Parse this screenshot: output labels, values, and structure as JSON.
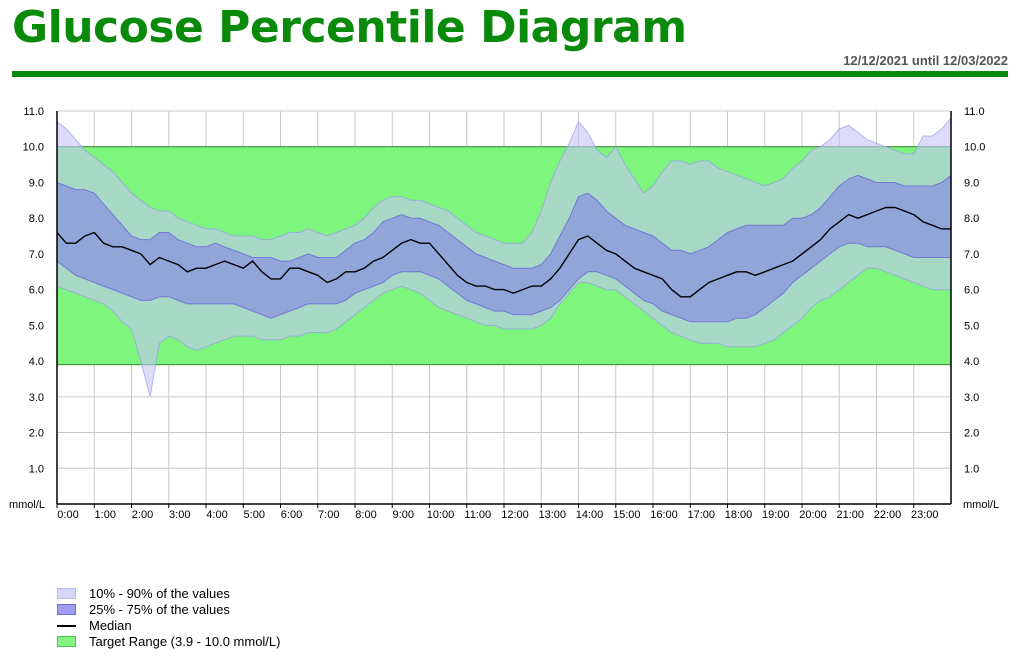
{
  "header": {
    "title": "Glucose Percentile Diagram",
    "date_range": "12/12/2021 until 12/03/2022"
  },
  "colors": {
    "brand_green": "#0a8a0a",
    "target_fill": "#7df57d",
    "band_outer": "#c4c4f7",
    "band_inner": "#8484e6",
    "median": "#000000"
  },
  "legend": {
    "items": [
      {
        "label": "10% - 90% of the values",
        "icon": "outer-band-swatch"
      },
      {
        "label": "25% - 75% of the values",
        "icon": "inner-band-swatch"
      },
      {
        "label": "Median",
        "icon": "median-line-swatch"
      },
      {
        "label": "Target Range (3.9 - 10.0 mmol/L)",
        "icon": "target-range-swatch"
      }
    ]
  },
  "chart_data": {
    "type": "area",
    "title": "Glucose Percentile Diagram",
    "xlabel": "",
    "ylabel": "mmol/L",
    "y_unit_label_left": "mmol/L",
    "y_unit_label_right": "mmol/L",
    "xlim": [
      0,
      24
    ],
    "ylim": [
      0,
      11
    ],
    "yticks": [
      1.0,
      2.0,
      3.0,
      4.0,
      5.0,
      6.0,
      7.0,
      8.0,
      9.0,
      10.0,
      11.0
    ],
    "ytick_labels": [
      "1.0",
      "2.0",
      "3.0",
      "4.0",
      "5.0",
      "6.0",
      "7.0",
      "8.0",
      "9.0",
      "10.0",
      "11.0"
    ],
    "xtick_labels": [
      "0:00",
      "1:00",
      "2:00",
      "3:00",
      "4:00",
      "5:00",
      "6:00",
      "7:00",
      "8:00",
      "9:00",
      "10:00",
      "11:00",
      "12:00",
      "13:00",
      "14:00",
      "15:00",
      "16:00",
      "17:00",
      "18:00",
      "19:00",
      "20:00",
      "21:00",
      "22:00",
      "23:00"
    ],
    "grid": true,
    "legend_position": "bottom-left",
    "target_range": {
      "low": 3.9,
      "high": 10.0
    },
    "x": [
      0,
      0.25,
      0.5,
      0.75,
      1,
      1.25,
      1.5,
      1.75,
      2,
      2.25,
      2.5,
      2.75,
      3,
      3.25,
      3.5,
      3.75,
      4,
      4.25,
      4.5,
      4.75,
      5,
      5.25,
      5.5,
      5.75,
      6,
      6.25,
      6.5,
      6.75,
      7,
      7.25,
      7.5,
      7.75,
      8,
      8.25,
      8.5,
      8.75,
      9,
      9.25,
      9.5,
      9.75,
      10,
      10.25,
      10.5,
      10.75,
      11,
      11.25,
      11.5,
      11.75,
      12,
      12.25,
      12.5,
      12.75,
      13,
      13.25,
      13.5,
      13.75,
      14,
      14.25,
      14.5,
      14.75,
      15,
      15.25,
      15.5,
      15.75,
      16,
      16.25,
      16.5,
      16.75,
      17,
      17.25,
      17.5,
      17.75,
      18,
      18.25,
      18.5,
      18.75,
      19,
      19.25,
      19.5,
      19.75,
      20,
      20.25,
      20.5,
      20.75,
      21,
      21.25,
      21.5,
      21.75,
      22,
      22.25,
      22.5,
      22.75,
      23,
      23.25,
      23.5,
      23.75,
      24
    ],
    "series": [
      {
        "name": "10% - 90% of the values",
        "upper": [
          10.7,
          10.5,
          10.2,
          9.9,
          9.7,
          9.5,
          9.3,
          9.0,
          8.7,
          8.5,
          8.3,
          8.2,
          8.2,
          8.0,
          7.9,
          7.8,
          7.7,
          7.7,
          7.6,
          7.5,
          7.5,
          7.5,
          7.4,
          7.4,
          7.5,
          7.6,
          7.6,
          7.7,
          7.6,
          7.5,
          7.6,
          7.7,
          7.8,
          8.0,
          8.3,
          8.5,
          8.6,
          8.6,
          8.5,
          8.5,
          8.4,
          8.3,
          8.2,
          8.0,
          7.8,
          7.6,
          7.5,
          7.4,
          7.3,
          7.3,
          7.3,
          7.6,
          8.2,
          9.0,
          9.6,
          10.1,
          10.7,
          10.4,
          9.9,
          9.7,
          10.0,
          9.5,
          9.1,
          8.7,
          8.9,
          9.3,
          9.6,
          9.6,
          9.5,
          9.6,
          9.6,
          9.4,
          9.3,
          9.2,
          9.1,
          9.0,
          8.9,
          9.0,
          9.1,
          9.4,
          9.6,
          9.9,
          10.0,
          10.2,
          10.5,
          10.6,
          10.4,
          10.2,
          10.1,
          10.0,
          9.9,
          9.8,
          9.8,
          10.3,
          10.3,
          10.5,
          10.8
        ],
        "lower": [
          6.1,
          6.0,
          5.9,
          5.8,
          5.7,
          5.6,
          5.4,
          5.1,
          4.9,
          4.0,
          3.0,
          4.5,
          4.7,
          4.6,
          4.4,
          4.3,
          4.4,
          4.5,
          4.6,
          4.7,
          4.7,
          4.7,
          4.6,
          4.6,
          4.6,
          4.7,
          4.7,
          4.8,
          4.8,
          4.8,
          4.9,
          5.1,
          5.3,
          5.5,
          5.7,
          5.9,
          6.0,
          6.1,
          6.0,
          5.9,
          5.7,
          5.5,
          5.4,
          5.3,
          5.2,
          5.1,
          5.0,
          5.0,
          4.9,
          4.9,
          4.9,
          4.9,
          5.0,
          5.2,
          5.6,
          5.9,
          6.2,
          6.2,
          6.1,
          6.0,
          6.0,
          5.8,
          5.6,
          5.4,
          5.2,
          5.0,
          4.8,
          4.7,
          4.6,
          4.5,
          4.5,
          4.5,
          4.4,
          4.4,
          4.4,
          4.4,
          4.5,
          4.6,
          4.8,
          5.0,
          5.2,
          5.5,
          5.7,
          5.8,
          6.0,
          6.2,
          6.4,
          6.6,
          6.6,
          6.5,
          6.4,
          6.3,
          6.2,
          6.1,
          6.0,
          6.0,
          6.0
        ]
      },
      {
        "name": "25% - 75% of the values",
        "upper": [
          9.0,
          8.9,
          8.8,
          8.8,
          8.7,
          8.4,
          8.1,
          7.8,
          7.5,
          7.4,
          7.4,
          7.6,
          7.6,
          7.4,
          7.3,
          7.2,
          7.2,
          7.3,
          7.2,
          7.1,
          7.0,
          6.9,
          6.9,
          6.9,
          6.8,
          6.8,
          6.9,
          7.0,
          6.9,
          6.9,
          6.9,
          7.1,
          7.3,
          7.4,
          7.6,
          7.9,
          8.0,
          8.1,
          8.0,
          8.0,
          7.9,
          7.8,
          7.6,
          7.4,
          7.2,
          7.0,
          6.9,
          6.8,
          6.7,
          6.6,
          6.6,
          6.6,
          6.7,
          7.0,
          7.5,
          8.0,
          8.6,
          8.7,
          8.5,
          8.2,
          8.0,
          7.8,
          7.7,
          7.6,
          7.5,
          7.3,
          7.1,
          7.1,
          7.0,
          7.1,
          7.2,
          7.4,
          7.6,
          7.7,
          7.8,
          7.8,
          7.8,
          7.8,
          7.8,
          8.0,
          8.0,
          8.1,
          8.3,
          8.6,
          8.9,
          9.1,
          9.2,
          9.1,
          9.0,
          9.0,
          9.0,
          8.9,
          8.9,
          8.9,
          8.9,
          9.0,
          9.2
        ],
        "lower": [
          6.8,
          6.6,
          6.4,
          6.3,
          6.2,
          6.1,
          6.0,
          5.9,
          5.8,
          5.7,
          5.7,
          5.8,
          5.8,
          5.7,
          5.6,
          5.6,
          5.6,
          5.6,
          5.6,
          5.6,
          5.5,
          5.4,
          5.3,
          5.2,
          5.3,
          5.4,
          5.5,
          5.6,
          5.6,
          5.6,
          5.6,
          5.7,
          5.9,
          6.0,
          6.1,
          6.2,
          6.4,
          6.5,
          6.5,
          6.5,
          6.4,
          6.3,
          6.1,
          5.9,
          5.7,
          5.6,
          5.5,
          5.4,
          5.4,
          5.3,
          5.3,
          5.3,
          5.4,
          5.5,
          5.7,
          6.0,
          6.3,
          6.5,
          6.5,
          6.4,
          6.3,
          6.1,
          5.9,
          5.7,
          5.6,
          5.4,
          5.3,
          5.2,
          5.1,
          5.1,
          5.1,
          5.1,
          5.1,
          5.2,
          5.2,
          5.3,
          5.5,
          5.7,
          5.9,
          6.2,
          6.4,
          6.6,
          6.8,
          7.0,
          7.2,
          7.3,
          7.3,
          7.2,
          7.2,
          7.2,
          7.1,
          7.0,
          6.9,
          6.9,
          6.9,
          6.9,
          6.9
        ]
      },
      {
        "name": "Median",
        "values": [
          7.6,
          7.3,
          7.3,
          7.5,
          7.6,
          7.3,
          7.2,
          7.2,
          7.1,
          7.0,
          6.7,
          6.9,
          6.8,
          6.7,
          6.5,
          6.6,
          6.6,
          6.7,
          6.8,
          6.7,
          6.6,
          6.8,
          6.5,
          6.3,
          6.3,
          6.6,
          6.6,
          6.5,
          6.4,
          6.2,
          6.3,
          6.5,
          6.5,
          6.6,
          6.8,
          6.9,
          7.1,
          7.3,
          7.4,
          7.3,
          7.3,
          7.0,
          6.7,
          6.4,
          6.2,
          6.1,
          6.1,
          6.0,
          6.0,
          5.9,
          6.0,
          6.1,
          6.1,
          6.3,
          6.6,
          7.0,
          7.4,
          7.5,
          7.3,
          7.1,
          7.0,
          6.8,
          6.6,
          6.5,
          6.4,
          6.3,
          6.0,
          5.8,
          5.8,
          6.0,
          6.2,
          6.3,
          6.4,
          6.5,
          6.5,
          6.4,
          6.5,
          6.6,
          6.7,
          6.8,
          7.0,
          7.2,
          7.4,
          7.7,
          7.9,
          8.1,
          8.0,
          8.1,
          8.2,
          8.3,
          8.3,
          8.2,
          8.1,
          7.9,
          7.8,
          7.7,
          7.7
        ]
      }
    ]
  }
}
